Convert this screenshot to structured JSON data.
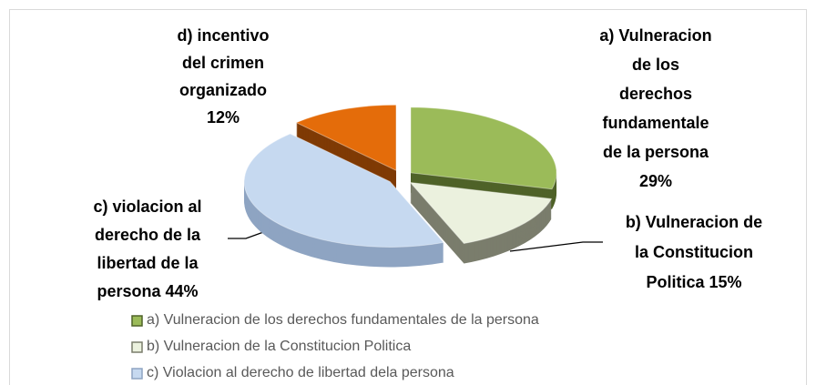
{
  "chart_data": {
    "type": "pie3d",
    "categories": [
      "a) Vulneracion de los derechos fundamentales de la persona",
      "b) Vulneracion de la Constitucion Politica",
      "c) Violacion al derecho de libertad dela persona",
      null
    ],
    "values": [
      29,
      15,
      44,
      12
    ],
    "value_labels": [
      "29%",
      "15%",
      "44%",
      "12%"
    ],
    "label_names": [
      [
        "a) Vulneracion",
        "de los",
        "derechos",
        "fundamentale",
        "de la persona"
      ],
      [
        "b) Vulneracion de",
        "la Constitucion",
        "Politica"
      ],
      [
        "c) violacion al",
        "derecho de la",
        "libertad de la",
        "persona"
      ],
      [
        "d) incentivo",
        "del crimen",
        "organizado"
      ]
    ],
    "colors": [
      "#9bbb59",
      "#ebf1de",
      "#c6d9f0",
      "#e46c0a"
    ],
    "side_colors": [
      "#4f6228",
      "#7a7d6c",
      "#8ea4c2",
      "#7f3a05"
    ],
    "legend": "bottom"
  }
}
